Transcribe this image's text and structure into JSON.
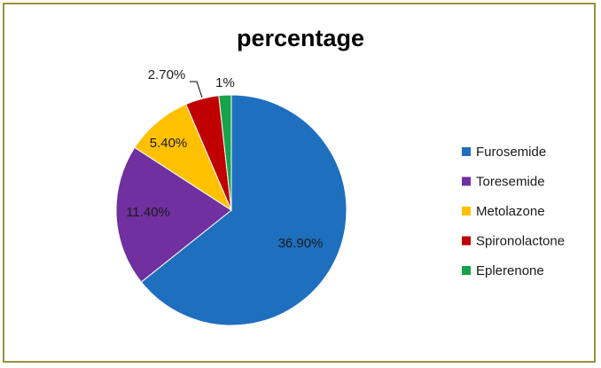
{
  "chart_data": {
    "type": "pie",
    "title": "percentage",
    "categories": [
      "Furosemide",
      "Toresemide",
      "Metolazone",
      "Spironolactone",
      "Eplerenone"
    ],
    "values": [
      36.9,
      11.4,
      5.4,
      2.7,
      1
    ],
    "data_labels": [
      "36.90%",
      "11.40%",
      "5.40%",
      "2.70%",
      "1%"
    ],
    "colors": [
      "#1f6fbf",
      "#7030a0",
      "#ffc000",
      "#c00000",
      "#17a34a"
    ],
    "legend_position": "right"
  }
}
